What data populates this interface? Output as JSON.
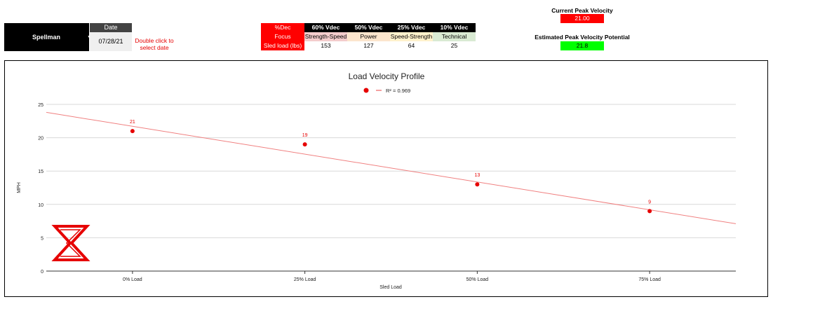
{
  "athlete": {
    "name": "Spellman"
  },
  "date": {
    "header": "Date",
    "value": "07/28/21",
    "hint_line1": "Double click to",
    "hint_line2": "select date"
  },
  "vdec_table": {
    "row_labels": [
      "%Dec",
      "Focus",
      "Sled load (lbs)"
    ],
    "columns": [
      {
        "vdec": "60% Vdec",
        "focus": "Strength-Speed",
        "focus_color": "#f4cccc",
        "load": "153"
      },
      {
        "vdec": "50% Vdec",
        "focus": "Power",
        "focus_color": "#fce5cd",
        "load": "127"
      },
      {
        "vdec": "25% Vdec",
        "focus": "Speed-Strength",
        "focus_color": "#fff2cc",
        "load": "64"
      },
      {
        "vdec": "10% Vdec",
        "focus": "Technical",
        "focus_color": "#d9ead3",
        "load": "25"
      }
    ]
  },
  "current_peak": {
    "label": "Current Peak Velocity",
    "value": "21.00",
    "color": "#ff0000"
  },
  "estimated_peak": {
    "label": "Estimated Peak Velocity Potential",
    "value": "21.8",
    "color": "#00ff00"
  },
  "chart_data": {
    "type": "scatter",
    "title": "Load Velocity Profile",
    "legend": "R² = 0.969",
    "legend_position": "top",
    "xlabel": "Sled Load",
    "ylabel": "MPH",
    "categories": [
      "0% Load",
      "25% Load",
      "50% Load",
      "75% Load"
    ],
    "values": [
      21,
      19,
      13,
      9
    ],
    "data_labels": [
      "21",
      "19",
      "13",
      "9"
    ],
    "ylim": [
      0,
      25
    ],
    "yticks": [
      "0",
      "5",
      "10",
      "15",
      "20",
      "25"
    ],
    "trendline": {
      "type": "linear",
      "start_value": 23.8,
      "end_value": 7.1
    },
    "grid": true,
    "point_color": "#e60000",
    "trend_color": "#f08080"
  }
}
